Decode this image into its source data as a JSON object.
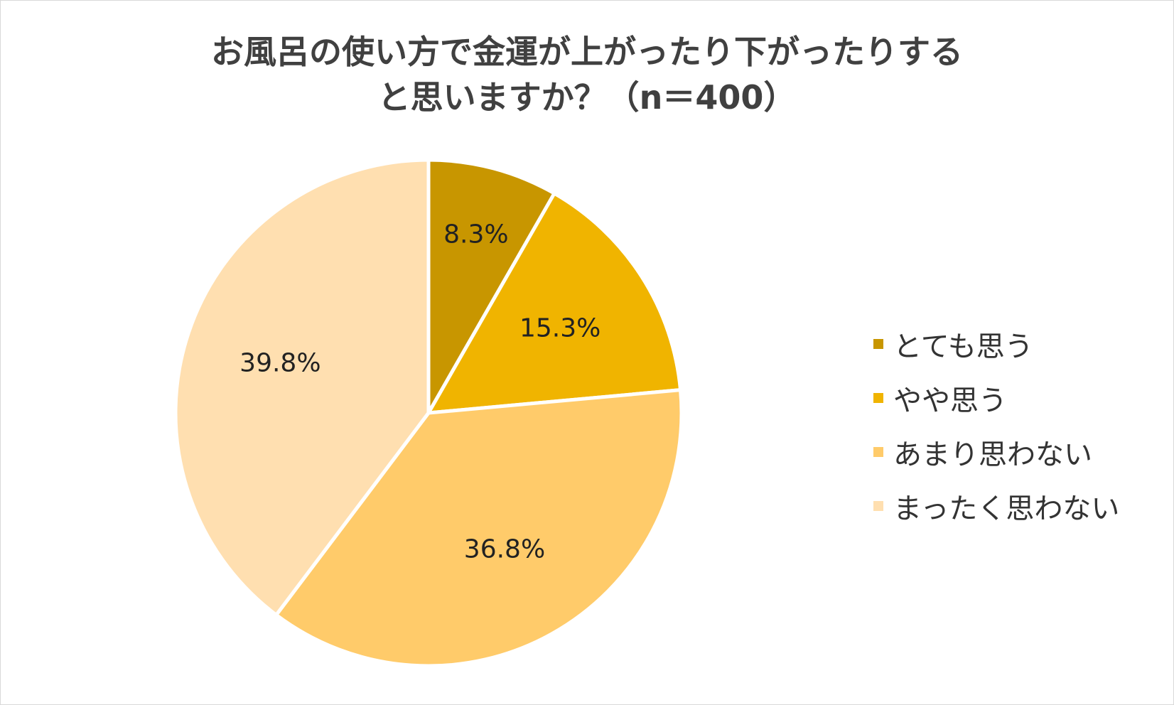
{
  "chart_data": {
    "type": "pie",
    "title_lines": [
      "お風呂の使い方で金運が上がったり下がったりする",
      "と思いますか？（n＝400）"
    ],
    "slices": [
      {
        "label": "とても思う",
        "value": 8.3,
        "display": "8.3%",
        "color": "#C89600"
      },
      {
        "label": "やや思う",
        "value": 15.3,
        "display": "15.3%",
        "color": "#F0B400"
      },
      {
        "label": "あまり思わない",
        "value": 36.8,
        "display": "36.8%",
        "color": "#FFCB6A"
      },
      {
        "label": "まったく思わない",
        "value": 39.8,
        "display": "39.8%",
        "color": "#FFDFB0"
      }
    ],
    "legend_position": "right"
  }
}
